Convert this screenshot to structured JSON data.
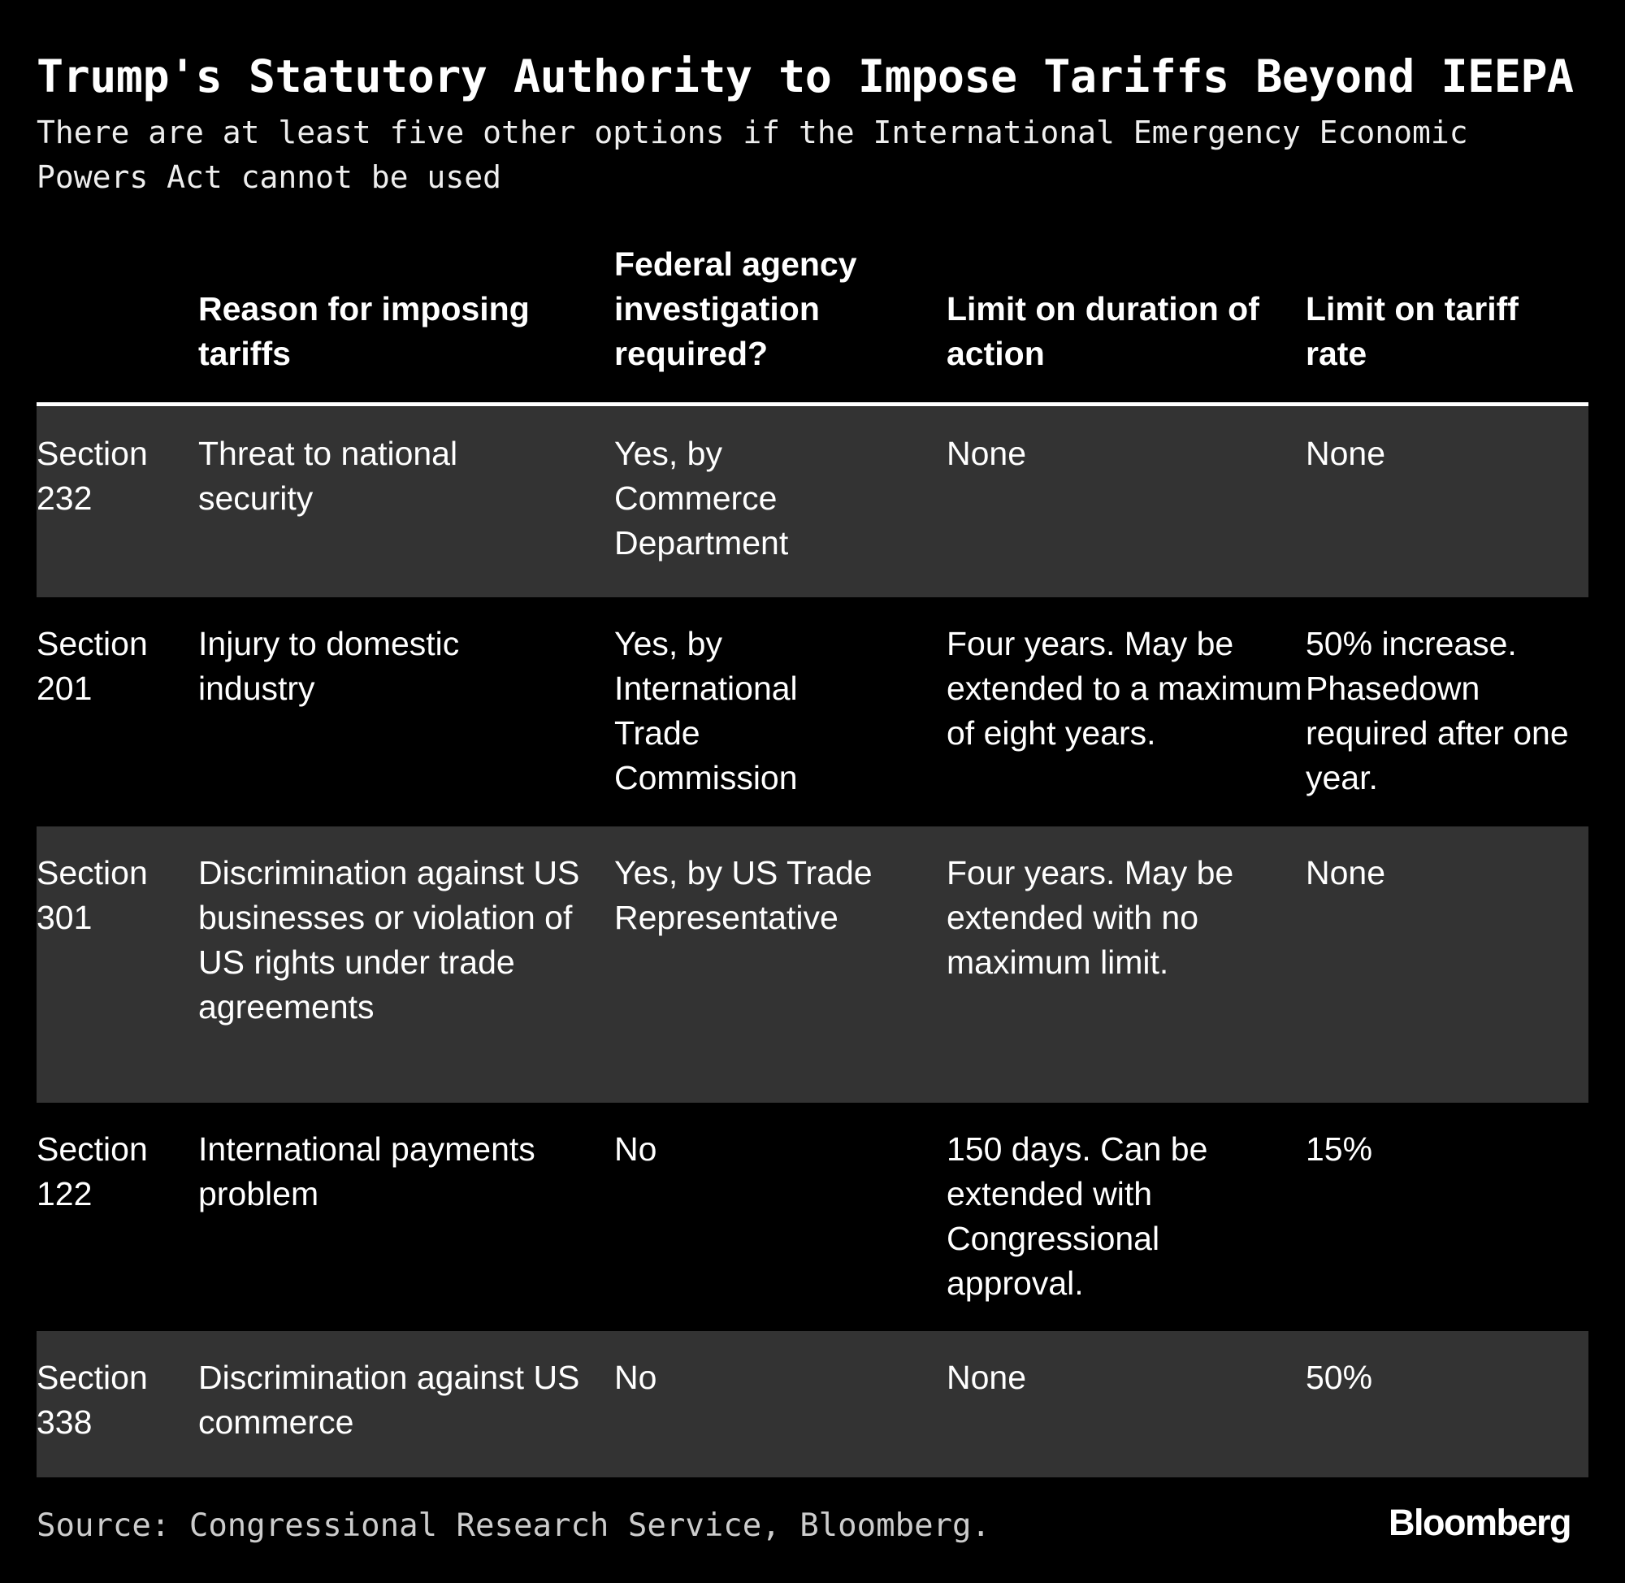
{
  "title": "Trump's Statutory Authority to Impose Tariffs Beyond IEEPA",
  "subtitle": "There are at least five other options if the International Emergency Economic Powers Act cannot be used",
  "table": {
    "headers": [
      "",
      "Reason for imposing tariffs",
      "Federal agency investigation required?",
      "Limit on duration of action",
      "Limit on tariff rate"
    ],
    "rows": [
      [
        "Section 232",
        "Threat to national security",
        "Yes, by Commerce Department",
        "None",
        "None"
      ],
      [
        "Section 201",
        "Injury to domestic industry",
        "Yes, by International Trade Commission",
        "Four years. May be extended to a maximum of eight years.",
        "50% increase. Phasedown required after one year."
      ],
      [
        "Section 301",
        "Discrimination against US businesses or violation of US rights under trade agreements",
        "Yes, by US Trade Representative",
        "Four years. May be extended with no maximum limit.",
        "None"
      ],
      [
        "Section 122",
        "International payments problem",
        "No",
        "150 days. Can be extended with Congressional approval.",
        "15%"
      ],
      [
        "Section 338",
        "Discrimination against US commerce",
        "No",
        "None",
        "50%"
      ]
    ]
  },
  "source": "Source: Congressional Research Service, Bloomberg.",
  "logo": "Bloomberg",
  "colors": {
    "background": "#000000",
    "row_alt": "#333333",
    "text": "#ffffff"
  }
}
